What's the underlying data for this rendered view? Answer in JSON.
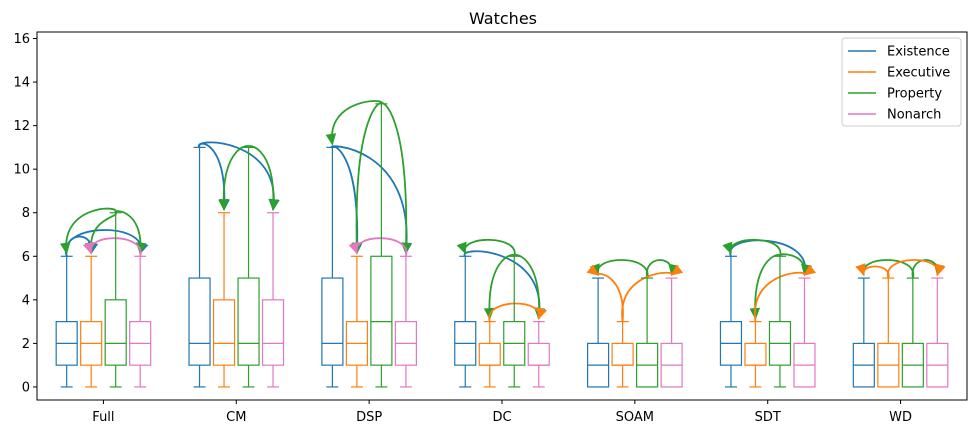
{
  "chart_data": {
    "type": "box",
    "title": "Watches",
    "xlabel": "",
    "ylabel": "",
    "categories": [
      "Full",
      "CM",
      "DSP",
      "DC",
      "SOAM",
      "SDT",
      "WD"
    ],
    "ylim": [
      -0.6,
      16.3
    ],
    "yticks": [
      0,
      2,
      4,
      6,
      8,
      10,
      12,
      14,
      16
    ],
    "legend_position": "top-right",
    "series": [
      {
        "name": "Existence",
        "color": "#1f77b4",
        "boxes": [
          {
            "min": 0,
            "q1": 1,
            "median": 2,
            "q3": 3,
            "max": 6
          },
          {
            "min": 0,
            "q1": 1,
            "median": 2,
            "q3": 5,
            "max": 11
          },
          {
            "min": 0,
            "q1": 1,
            "median": 2,
            "q3": 5,
            "max": 11
          },
          {
            "min": 0,
            "q1": 1,
            "median": 2,
            "q3": 3,
            "max": 6
          },
          {
            "min": 0,
            "q1": 0,
            "median": 1,
            "q3": 2,
            "max": 5
          },
          {
            "min": 0,
            "q1": 1,
            "median": 2,
            "q3": 3,
            "max": 6
          },
          {
            "min": 0,
            "q1": 0,
            "median": 1,
            "q3": 2,
            "max": 5
          }
        ]
      },
      {
        "name": "Executive",
        "color": "#ff7f0e",
        "boxes": [
          {
            "min": 0,
            "q1": 1,
            "median": 2,
            "q3": 3,
            "max": 6
          },
          {
            "min": 0,
            "q1": 1,
            "median": 2,
            "q3": 4,
            "max": 8
          },
          {
            "min": 0,
            "q1": 1,
            "median": 2,
            "q3": 3,
            "max": 6
          },
          {
            "min": 0,
            "q1": 1,
            "median": 1,
            "q3": 2,
            "max": 3
          },
          {
            "min": 0,
            "q1": 1,
            "median": 1,
            "q3": 2,
            "max": 3
          },
          {
            "min": 0,
            "q1": 1,
            "median": 1,
            "q3": 2,
            "max": 3
          },
          {
            "min": 0,
            "q1": 0,
            "median": 1,
            "q3": 2,
            "max": 5
          }
        ]
      },
      {
        "name": "Property",
        "color": "#2ca02c",
        "boxes": [
          {
            "min": 0,
            "q1": 1,
            "median": 2,
            "q3": 4,
            "max": 8
          },
          {
            "min": 0,
            "q1": 1,
            "median": 2,
            "q3": 5,
            "max": 11
          },
          {
            "min": 0,
            "q1": 1,
            "median": 3,
            "q3": 6,
            "max": 13
          },
          {
            "min": 0,
            "q1": 1,
            "median": 2,
            "q3": 3,
            "max": 6
          },
          {
            "min": 0,
            "q1": 0,
            "median": 1,
            "q3": 2,
            "max": 5
          },
          {
            "min": 0,
            "q1": 1,
            "median": 2,
            "q3": 3,
            "max": 6
          },
          {
            "min": 0,
            "q1": 0,
            "median": 1,
            "q3": 2,
            "max": 5
          }
        ]
      },
      {
        "name": "Nonarch",
        "color": "#e377c2",
        "boxes": [
          {
            "min": 0,
            "q1": 1,
            "median": 2,
            "q3": 3,
            "max": 6
          },
          {
            "min": 0,
            "q1": 1,
            "median": 2,
            "q3": 4,
            "max": 8
          },
          {
            "min": 0,
            "q1": 1,
            "median": 2,
            "q3": 3,
            "max": 6
          },
          {
            "min": 0,
            "q1": 1,
            "median": 1,
            "q3": 2,
            "max": 3
          },
          {
            "min": 0,
            "q1": 0,
            "median": 1,
            "q3": 2,
            "max": 5
          },
          {
            "min": 0,
            "q1": 0,
            "median": 1,
            "q3": 2,
            "max": 5
          },
          {
            "min": 0,
            "q1": 0,
            "median": 1,
            "q3": 2,
            "max": 5
          }
        ]
      }
    ],
    "arrows": [
      {
        "group": "Full",
        "from": "Existence",
        "to": "Executive",
        "color": "#1f77b4",
        "peak": 7.0
      },
      {
        "group": "Full",
        "from": "Existence",
        "to": "Nonarch",
        "color": "#1f77b4",
        "peak": 7.4
      },
      {
        "group": "Full",
        "from": "Property",
        "to": "Existence",
        "color": "#2ca02c",
        "peak": 8.2
      },
      {
        "group": "Full",
        "from": "Property",
        "to": "Executive",
        "color": "#2ca02c",
        "peak": 7.6
      },
      {
        "group": "Full",
        "from": "Property",
        "to": "Nonarch",
        "color": "#2ca02c",
        "peak": 8.0
      },
      {
        "group": "Full",
        "from": "Nonarch",
        "to": "Executive",
        "color": "#e377c2",
        "peak": 6.9
      },
      {
        "group": "CM",
        "from": "Existence",
        "to": "Executive",
        "color": "#1f77b4",
        "peak": 11.2
      },
      {
        "group": "CM",
        "from": "Existence",
        "to": "Nonarch",
        "color": "#1f77b4",
        "peak": 11.3
      },
      {
        "group": "CM",
        "from": "Property",
        "to": "Executive",
        "color": "#2ca02c",
        "peak": 11.0
      },
      {
        "group": "CM",
        "from": "Property",
        "to": "Nonarch",
        "color": "#2ca02c",
        "peak": 11.0
      },
      {
        "group": "DSP",
        "from": "Existence",
        "to": "Executive",
        "color": "#1f77b4",
        "peak": 11.0
      },
      {
        "group": "DSP",
        "from": "Existence",
        "to": "Nonarch",
        "color": "#1f77b4",
        "peak": 11.0
      },
      {
        "group": "DSP",
        "from": "Property",
        "to": "Existence",
        "color": "#2ca02c",
        "peak": 13.1
      },
      {
        "group": "DSP",
        "from": "Property",
        "to": "Executive",
        "color": "#2ca02c",
        "peak": 13.0
      },
      {
        "group": "DSP",
        "from": "Property",
        "to": "Nonarch",
        "color": "#2ca02c",
        "peak": 13.0
      },
      {
        "group": "DSP",
        "from": "Nonarch",
        "to": "Executive",
        "color": "#e377c2",
        "peak": 6.9
      },
      {
        "group": "DC",
        "from": "Existence",
        "to": "Nonarch",
        "color": "#1f77b4",
        "peak": 6.3
      },
      {
        "group": "DC",
        "from": "Property",
        "to": "Existence",
        "color": "#2ca02c",
        "peak": 6.8
      },
      {
        "group": "DC",
        "from": "Property",
        "to": "Executive",
        "color": "#2ca02c",
        "peak": 6.0
      },
      {
        "group": "DC",
        "from": "Property",
        "to": "Nonarch",
        "color": "#2ca02c",
        "peak": 6.0
      },
      {
        "group": "DC",
        "from": "Executive",
        "to": "Nonarch",
        "color": "#ff7f0e",
        "peak": 3.9
      },
      {
        "group": "SOAM",
        "from": "Property",
        "to": "Existence",
        "color": "#2ca02c",
        "peak": 5.9
      },
      {
        "group": "SOAM",
        "from": "Property",
        "to": "Nonarch",
        "color": "#2ca02c",
        "peak": 5.9
      },
      {
        "group": "SOAM",
        "from": "Executive",
        "to": "Existence",
        "color": "#ff7f0e",
        "peak": 5.1
      },
      {
        "group": "SOAM",
        "from": "Executive",
        "to": "Nonarch",
        "color": "#ff7f0e",
        "peak": 5.2
      },
      {
        "group": "SDT",
        "from": "Existence",
        "to": "Nonarch",
        "color": "#1f77b4",
        "peak": 6.9
      },
      {
        "group": "SDT",
        "from": "Property",
        "to": "Existence",
        "color": "#2ca02c",
        "peak": 6.8
      },
      {
        "group": "SDT",
        "from": "Property",
        "to": "Executive",
        "color": "#2ca02c",
        "peak": 6.0
      },
      {
        "group": "SDT",
        "from": "Property",
        "to": "Nonarch",
        "color": "#2ca02c",
        "peak": 6.0
      },
      {
        "group": "SDT",
        "from": "Executive",
        "to": "Nonarch",
        "color": "#ff7f0e",
        "peak": 5.2
      },
      {
        "group": "WD",
        "from": "Property",
        "to": "Existence",
        "color": "#2ca02c",
        "peak": 5.9
      },
      {
        "group": "WD",
        "from": "Property",
        "to": "Nonarch",
        "color": "#2ca02c",
        "peak": 5.9
      },
      {
        "group": "WD",
        "from": "Executive",
        "to": "Existence",
        "color": "#ff7f0e",
        "peak": 5.5
      },
      {
        "group": "WD",
        "from": "Executive",
        "to": "Nonarch",
        "color": "#ff7f0e",
        "peak": 5.9
      }
    ]
  }
}
